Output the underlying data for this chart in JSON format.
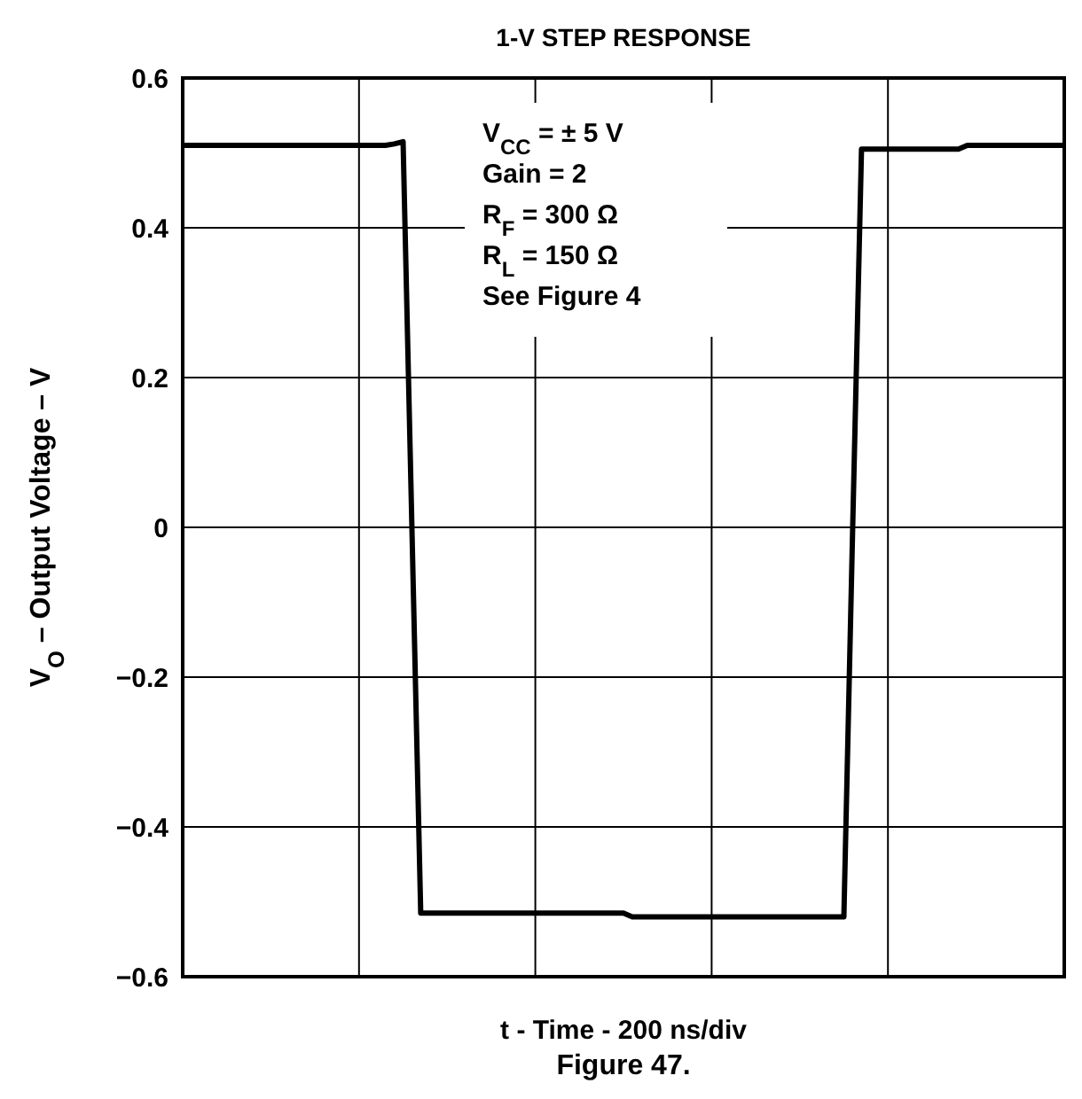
{
  "chart_data": {
    "type": "line",
    "title": "1-V STEP RESPONSE",
    "xlabel": "t - Time - 200 ns/div",
    "ylabel": "V$_{O}$ – Output Voltage – V",
    "annotations": [
      "V$_{CC}$ = ± 5 V\nGain = 2\nR$_{F}$ = 300 Ω\nR$_{L}$ = 150 Ω\nSee Figure 4",
      "Figure 47."
    ],
    "categories": [
      null,
      null,
      null,
      null,
      null,
      null,
      null,
      null,
      null,
      null,
      null,
      null,
      null,
      null,
      null,
      null,
      null,
      null,
      null,
      null,
      null,
      null,
      null,
      null,
      null,
      null,
      null,
      null,
      null,
      null,
      null,
      null,
      null,
      null,
      null,
      null,
      null,
      null,
      null,
      null,
      null,
      null,
      null,
      null,
      null,
      null,
      null,
      null,
      null,
      null,
      null,
      null,
      null,
      null,
      null,
      null,
      null,
      null,
      null,
      null,
      null,
      null,
      null,
      null,
      null,
      null,
      null,
      null,
      null,
      null,
      null,
      null,
      null,
      null,
      null,
      null,
      null,
      null,
      null,
      null,
      null,
      null,
      null,
      null,
      null,
      null,
      null,
      null,
      null,
      null,
      null,
      null,
      null,
      null,
      null,
      null,
      null,
      null,
      null,
      null,
      null
    ],
    "series": [
      {
        "color": "#000000",
        "values": [
          0.51,
          0.51,
          0.51,
          0.51,
          0.51,
          0.51,
          0.51,
          0.51,
          0.51,
          0.51,
          0.51,
          0.51,
          0.51,
          0.51,
          0.51,
          0.51,
          0.51,
          0.51,
          0.51,
          0.51,
          0.51,
          0.51,
          0.51,
          0.51,
          0.512,
          0.515,
          0,
          -0.515,
          -0.515,
          -0.515,
          -0.515,
          -0.515,
          -0.515,
          -0.515,
          -0.515,
          -0.515,
          -0.515,
          -0.515,
          -0.515,
          -0.515,
          -0.515,
          -0.515,
          -0.515,
          -0.515,
          -0.515,
          -0.515,
          -0.515,
          -0.515,
          -0.515,
          -0.515,
          -0.515,
          -0.52,
          -0.52,
          -0.52,
          -0.52,
          -0.52,
          -0.52,
          -0.52,
          -0.52,
          -0.52,
          -0.52,
          -0.52,
          -0.52,
          -0.52,
          -0.52,
          -0.52,
          -0.52,
          -0.52,
          -0.52,
          -0.52,
          -0.52,
          -0.52,
          -0.52,
          -0.52,
          -0.52,
          -0.52,
          0,
          0.505,
          0.505,
          0.505,
          0.505,
          0.505,
          0.505,
          0.505,
          0.505,
          0.505,
          0.505,
          0.505,
          0.505,
          0.51,
          0.51,
          0.51,
          0.51,
          0.51,
          0.51,
          0.51,
          0.51,
          0.51,
          0.51,
          0.51,
          0.51
        ]
      }
    ],
    "ylim": [
      -0.6,
      0.6
    ],
    "yticks": [
      {
        "value": -0.6,
        "label": "−0.6"
      },
      {
        "value": -0.4,
        "label": "−0.4"
      },
      {
        "value": -0.2,
        "label": "−0.2"
      },
      0,
      0.2,
      0.4,
      0.6
    ],
    "grid": true,
    "tick_labels": "y",
    "marker": "none",
    "line_style": "solid"
  }
}
